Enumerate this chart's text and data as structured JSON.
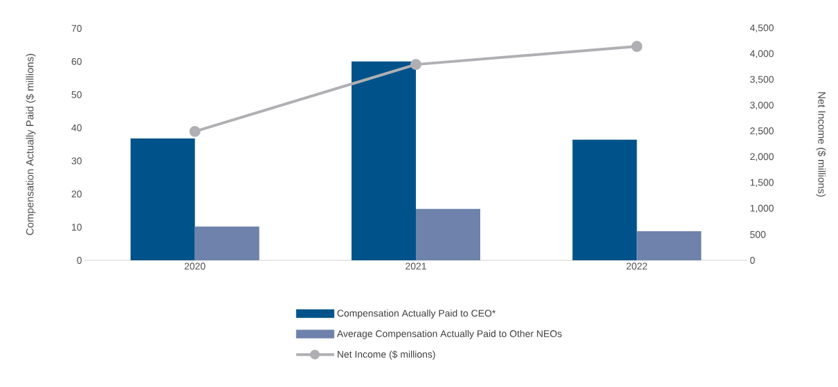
{
  "chart_data": {
    "type": "bar",
    "categories": [
      "2020",
      "2021",
      "2022"
    ],
    "series": [
      {
        "name": "Compensation Actually Paid to CEO*",
        "color": "#00538a",
        "values": [
          36.8,
          60.0,
          36.4
        ]
      },
      {
        "name": "Average Compensation Actually Paid to Other NEOs",
        "color": "#6e82ab",
        "values": [
          10.2,
          15.5,
          8.8
        ]
      },
      {
        "name": "Net Income ($ millions)",
        "type": "line",
        "axis": "y2",
        "color": "#b0b0b4",
        "marker": "circle",
        "values": [
          2500,
          3800,
          4150
        ]
      }
    ],
    "ylabel": "Compensation Actually Paid ($ millions)",
    "y2label": "Net Income ($ millions)",
    "ylim": [
      0,
      70
    ],
    "yticks": [
      0,
      10,
      20,
      30,
      40,
      50,
      60,
      70
    ],
    "y2lim": [
      0,
      4500
    ],
    "y2ticks": [
      0,
      500,
      {
        "value": 1000,
        "label": "1,000"
      },
      {
        "value": 1500,
        "label": "1,500"
      },
      {
        "value": 2000,
        "label": "2,000"
      },
      {
        "value": 2500,
        "label": "2,500"
      },
      {
        "value": 3000,
        "label": "3,000"
      },
      {
        "value": 3500,
        "label": "3,500"
      },
      {
        "value": 4000,
        "label": "4,000"
      },
      {
        "value": 4500,
        "label": "4,500"
      }
    ],
    "legend": "bottom"
  }
}
